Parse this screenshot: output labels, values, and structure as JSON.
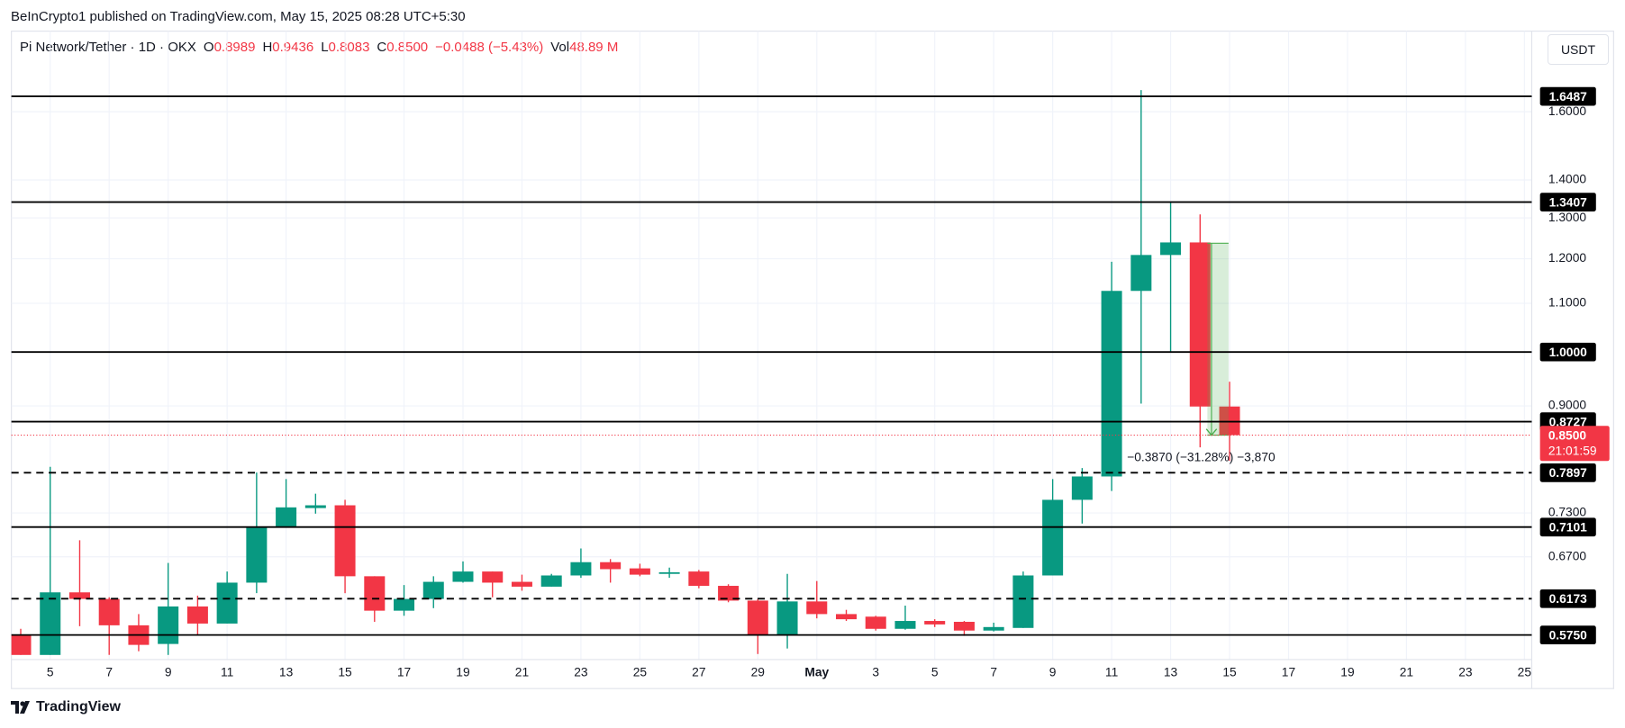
{
  "published": "BeInCrypto1 published on TradingView.com, May 15, 2025 08:28 UTC+5:30",
  "currency": "USDT",
  "footer": "TradingView",
  "chart_data": {
    "type": "candlestick",
    "symbol": "Pi Network/Tether · 1D · OKX",
    "header_values": [
      {
        "key": "O",
        "value": "0.8989"
      },
      {
        "key": "H",
        "value": "0.9436"
      },
      {
        "key": "L",
        "value": "0.8083"
      },
      {
        "key": "C",
        "value": "0.8500"
      }
    ],
    "change": "−0.0488 (−5.43%)",
    "volume": {
      "key": "Vol",
      "value": "48.89 M"
    },
    "up_color": "#089981",
    "down_color": "#f23645",
    "log_scale": true,
    "grid": true,
    "categories": [
      null,
      "5",
      null,
      "7",
      null,
      "9",
      null,
      "11",
      null,
      "13",
      null,
      "15",
      null,
      "17",
      null,
      "19",
      null,
      "21",
      null,
      "23",
      null,
      "25",
      null,
      "27",
      null,
      "29",
      null,
      "May",
      null,
      "3",
      null,
      "5",
      null,
      "7",
      null,
      "9",
      null,
      "11",
      null,
      "13",
      null,
      "15",
      null,
      "17",
      null,
      "19",
      null,
      "21",
      null,
      "23",
      null,
      "25"
    ],
    "open": [
      0.575,
      0.553,
      0.625,
      0.617,
      0.586,
      0.565,
      0.608,
      0.588,
      0.637,
      0.71,
      0.737,
      0.741,
      0.645,
      0.603,
      0.617,
      0.638,
      0.651,
      0.638,
      0.632,
      0.646,
      0.663,
      0.655,
      0.648,
      0.651,
      0.633,
      0.615,
      0.575,
      0.614,
      0.599,
      0.596,
      0.582,
      0.591,
      0.59,
      0.58,
      0.583,
      0.646,
      0.749,
      0.784,
      1.127,
      1.209,
      1.239,
      0.8989,
      null,
      null,
      null,
      null,
      null,
      null,
      null,
      null,
      null,
      null
    ],
    "high": [
      0.582,
      0.799,
      0.692,
      0.619,
      0.599,
      0.662,
      0.621,
      0.651,
      0.79,
      0.78,
      0.758,
      0.749,
      0.645,
      0.634,
      0.645,
      0.664,
      0.651,
      0.647,
      0.648,
      0.681,
      0.667,
      0.661,
      0.656,
      0.653,
      0.635,
      0.617,
      0.648,
      0.639,
      0.604,
      0.597,
      0.609,
      0.593,
      0.591,
      0.589,
      0.651,
      0.78,
      0.797,
      1.193,
      1.669,
      1.341,
      1.309,
      0.9436,
      null,
      null,
      null,
      null,
      null,
      null,
      null,
      null,
      null,
      null
    ],
    "low": [
      0.553,
      0.553,
      0.585,
      0.553,
      0.557,
      0.553,
      0.575,
      0.588,
      0.624,
      0.71,
      0.729,
      0.624,
      0.59,
      0.597,
      0.606,
      0.637,
      0.619,
      0.627,
      0.632,
      0.643,
      0.637,
      0.645,
      0.643,
      0.63,
      0.613,
      0.554,
      0.56,
      0.594,
      0.591,
      0.58,
      0.581,
      0.584,
      0.574,
      0.579,
      0.583,
      0.646,
      0.715,
      0.762,
      0.904,
      1.0,
      0.83,
      0.8083,
      null,
      null,
      null,
      null,
      null,
      null,
      null,
      null,
      null,
      null
    ],
    "close": [
      0.553,
      0.625,
      0.617,
      0.586,
      0.564,
      0.608,
      0.588,
      0.637,
      0.71,
      0.738,
      0.741,
      0.645,
      0.603,
      0.617,
      0.638,
      0.651,
      0.637,
      0.632,
      0.646,
      0.663,
      0.654,
      0.647,
      0.65,
      0.633,
      0.615,
      0.575,
      0.614,
      0.599,
      0.593,
      0.582,
      0.591,
      0.587,
      0.58,
      0.584,
      0.646,
      0.749,
      0.784,
      1.127,
      1.209,
      1.239,
      0.8989,
      0.85,
      null,
      null,
      null,
      null,
      null,
      null,
      null,
      null,
      null,
      null
    ],
    "ylim": [
      0.548,
      1.873
    ],
    "yticks": [
      {
        "value": 0.67,
        "label": "0.6700"
      },
      {
        "value": 0.73,
        "label": "0.7300"
      },
      {
        "value": 0.9,
        "label": "0.9000"
      },
      {
        "value": 1.1,
        "label": "1.1000"
      },
      {
        "value": 1.2,
        "label": "1.2000"
      },
      {
        "value": 1.3,
        "label": "1.3000"
      },
      {
        "value": 1.4,
        "label": "1.4000"
      },
      {
        "value": 1.6,
        "label": "1.6000"
      }
    ],
    "levels": [
      {
        "value": 1.6487,
        "label": "1.6487",
        "dashed": false
      },
      {
        "value": 1.3407,
        "label": "1.3407",
        "dashed": false
      },
      {
        "value": 1.0,
        "label": "1.0000",
        "dashed": false
      },
      {
        "value": 0.8727,
        "label": "0.8727",
        "dashed": false
      },
      {
        "value": 0.7897,
        "label": "0.7897",
        "dashed": true
      },
      {
        "value": 0.7101,
        "label": "0.7101",
        "dashed": false
      },
      {
        "value": 0.6173,
        "label": "0.6173",
        "dashed": true
      },
      {
        "value": 0.575,
        "label": "0.5750",
        "dashed": false
      }
    ],
    "current_price": {
      "value": 0.85,
      "label": "0.8500",
      "countdown": "21:01:59"
    },
    "measure": {
      "from": 1.237,
      "to": 0.85,
      "label": "−0.3870 (−31.28%) −3,870"
    }
  }
}
